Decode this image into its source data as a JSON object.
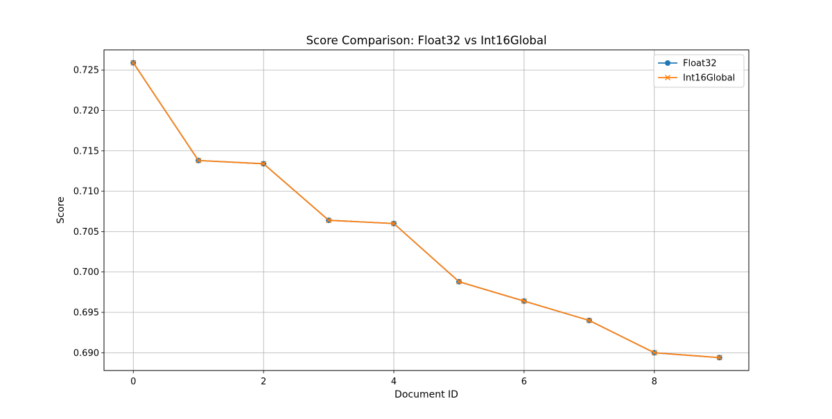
{
  "chart_data": {
    "type": "line",
    "title": "Score Comparison: Float32 vs Int16Global",
    "xlabel": "Document ID",
    "ylabel": "Score",
    "xlim": [
      -0.45,
      9.45
    ],
    "ylim": [
      0.6878,
      0.7275
    ],
    "x_ticks": [
      0,
      2,
      4,
      6,
      8
    ],
    "x_tick_labels": [
      "0",
      "2",
      "4",
      "6",
      "8"
    ],
    "y_ticks": [
      0.69,
      0.695,
      0.7,
      0.705,
      0.71,
      0.715,
      0.72,
      0.725
    ],
    "y_tick_labels": [
      "0.690",
      "0.695",
      "0.700",
      "0.705",
      "0.710",
      "0.715",
      "0.720",
      "0.725"
    ],
    "grid": true,
    "legend_position": "top-right",
    "x": [
      0,
      1,
      2,
      3,
      4,
      5,
      6,
      7,
      8,
      9
    ],
    "series": [
      {
        "name": "Float32",
        "color": "#1f77b4",
        "marker": "circle",
        "values": [
          0.7259,
          0.7138,
          0.7134,
          0.7064,
          0.706,
          0.6988,
          0.6964,
          0.694,
          0.69,
          0.6894
        ]
      },
      {
        "name": "Int16Global",
        "color": "#ff7f0e",
        "marker": "x",
        "values": [
          0.7259,
          0.7138,
          0.7134,
          0.7064,
          0.706,
          0.6988,
          0.6964,
          0.694,
          0.69,
          0.6894
        ]
      }
    ]
  }
}
